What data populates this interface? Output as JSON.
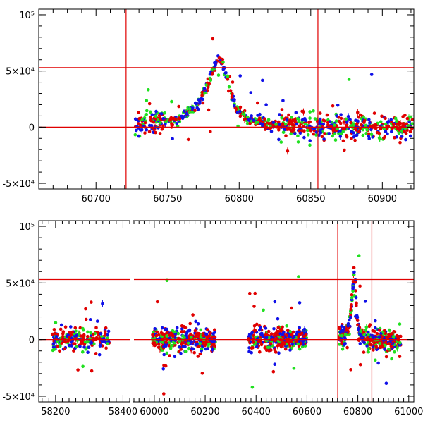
{
  "chart_data": [
    {
      "panel": "top",
      "type": "scatter",
      "title": "",
      "xlabel": "",
      "ylabel": "",
      "xlim": [
        60660,
        60922
      ],
      "ylim": [
        -55000,
        105000
      ],
      "x_ticks": [
        60700,
        60750,
        60800,
        60850,
        60900
      ],
      "x_tick_labels": [
        "60700",
        "60750",
        "60800",
        "60850",
        "60900"
      ],
      "y_ticks": [
        -50000,
        0,
        50000,
        100000
      ],
      "y_tick_labels": [
        "-5×10⁴",
        "0",
        "5×10⁴",
        "10⁵"
      ],
      "x_minor_step": 10,
      "y_minor_step": 10000,
      "vertical_lines": [
        60721,
        60855
      ],
      "horizontal_lines": [
        0,
        53000
      ],
      "colors": {
        "blue": "#1010e8",
        "green": "#20e020",
        "red": "#e00000",
        "lines": "#e00000",
        "frame": "#000000"
      },
      "series": [
        {
          "name": "blue",
          "color": "#1010e8",
          "segments": [
            {
              "start": 60727,
              "end": 60921,
              "count": 260
            }
          ]
        },
        {
          "name": "green",
          "color": "#20e020",
          "segments": [
            {
              "start": 60727,
              "end": 60921,
              "count": 220
            }
          ]
        },
        {
          "name": "red",
          "color": "#e00000",
          "segments": [
            {
              "start": 60727,
              "end": 60921,
              "count": 360
            }
          ]
        }
      ],
      "peak": {
        "x": 60787,
        "y": 60000,
        "width_rise": 15,
        "width_fall": 9
      }
    },
    {
      "panel": "bottom",
      "type": "scatter",
      "title": "",
      "xlabel": "",
      "ylabel": "",
      "ylim": [
        -55000,
        105000
      ],
      "broken_axis": [
        {
          "xlim": [
            58150,
            58420
          ],
          "ticks": [
            58200,
            58400
          ],
          "tick_labels": [
            "58200",
            "58400"
          ]
        },
        {
          "xlim": [
            59920,
            61020
          ],
          "ticks": [
            60000,
            60200,
            60400,
            60600,
            60800,
            61000
          ],
          "tick_labels": [
            "60000",
            "60200",
            "60400",
            "60600",
            "60800",
            "61000"
          ]
        }
      ],
      "y_ticks": [
        -50000,
        0,
        50000,
        100000
      ],
      "y_tick_labels": [
        "-5×10⁴",
        "0",
        "5×10⁴",
        "10⁵"
      ],
      "y_minor_step": 10000,
      "vertical_lines": [
        60721,
        60855
      ],
      "horizontal_lines": [
        0,
        53000
      ],
      "series": [
        {
          "name": "blue",
          "color": "#1010e8",
          "segments": [
            {
              "start": 58190,
              "end": 58360,
              "count": 70
            },
            {
              "start": 59990,
              "end": 60240,
              "count": 110
            },
            {
              "start": 60370,
              "end": 60600,
              "count": 110
            },
            {
              "start": 60727,
              "end": 60970,
              "count": 120
            }
          ]
        },
        {
          "name": "green",
          "color": "#20e020",
          "segments": [
            {
              "start": 58190,
              "end": 58360,
              "count": 55
            },
            {
              "start": 59990,
              "end": 60240,
              "count": 80
            },
            {
              "start": 60370,
              "end": 60600,
              "count": 80
            },
            {
              "start": 60727,
              "end": 60970,
              "count": 90
            }
          ]
        },
        {
          "name": "red",
          "color": "#e00000",
          "segments": [
            {
              "start": 58190,
              "end": 58360,
              "count": 90
            },
            {
              "start": 59990,
              "end": 60240,
              "count": 150
            },
            {
              "start": 60370,
              "end": 60600,
              "count": 150
            },
            {
              "start": 60727,
              "end": 60970,
              "count": 170
            }
          ]
        }
      ],
      "peak": {
        "x": 60787,
        "y": 60000,
        "width_rise": 15,
        "width_fall": 9
      }
    }
  ]
}
